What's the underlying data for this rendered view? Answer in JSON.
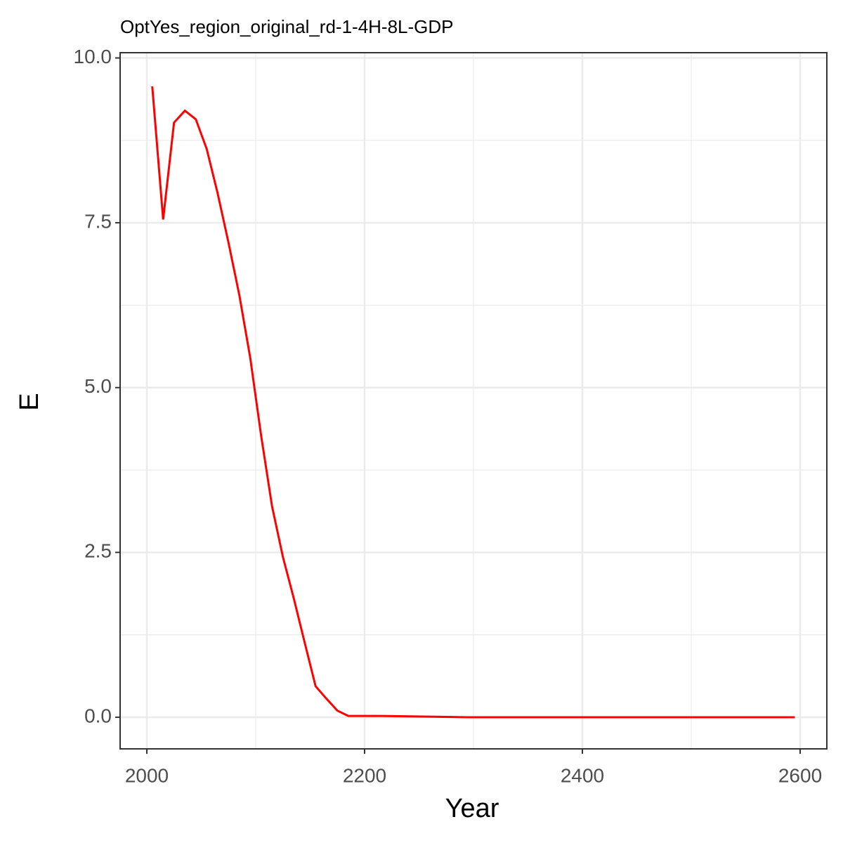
{
  "chart_data": {
    "type": "line",
    "title": "OptYes_region_original_rd-1-4H-8L-GDP",
    "x_label": "Year",
    "y_label": "E",
    "x": [
      2005,
      2015,
      2025,
      2035,
      2045,
      2055,
      2065,
      2075,
      2085,
      2095,
      2105,
      2115,
      2125,
      2135,
      2145,
      2155,
      2165,
      2175,
      2185,
      2215,
      2295,
      2595
    ],
    "series": [
      {
        "color": "#ff0000",
        "values": [
          9.57,
          7.55,
          9.02,
          9.2,
          9.07,
          8.62,
          7.95,
          7.2,
          6.4,
          5.45,
          4.27,
          3.2,
          2.43,
          1.8,
          1.13,
          0.47,
          0.28,
          0.1,
          0.02,
          0.02,
          0.0,
          0.0
        ]
      }
    ],
    "xlim": [
      1975.5,
      2624.5
    ],
    "ylim": [
      -0.48,
      10.08
    ],
    "xticks": [
      2000,
      2200,
      2400,
      2600
    ],
    "yticks": [
      {
        "value": 0,
        "label": "0.0"
      },
      2.5,
      {
        "value": 5,
        "label": "5.0"
      },
      7.5,
      {
        "value": 10,
        "label": "10.0"
      }
    ],
    "grid": true
  }
}
